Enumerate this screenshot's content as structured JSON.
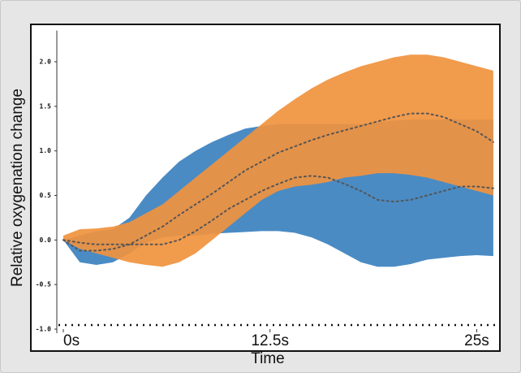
{
  "chart_data": {
    "type": "band",
    "x_label": "Time",
    "y_label": "Relative oxygenation change",
    "x": [
      0,
      1,
      2,
      3,
      4,
      5,
      6,
      7,
      8,
      9,
      10,
      11,
      12,
      13,
      14,
      15,
      16,
      17,
      18,
      19,
      20,
      21,
      22,
      23,
      24,
      25,
      26
    ],
    "xlim": [
      0,
      26.4
    ],
    "xticks": [
      {
        "value": 0,
        "label": "0s"
      },
      {
        "value": 12.5,
        "label": "12.5s"
      },
      {
        "value": 25,
        "label": "25s"
      }
    ],
    "ylim": [
      -1.0,
      2.35
    ],
    "yticks": [
      {
        "value": 2,
        "label": "2.0"
      },
      {
        "value": 1.5,
        "label": "1.5"
      },
      {
        "value": 1,
        "label": "1.0"
      },
      0.5,
      {
        "value": 0,
        "label": "0.0"
      },
      -0.5,
      {
        "value": -1,
        "label": "-1.0"
      }
    ],
    "series": [
      {
        "color": "#4a8bc4",
        "lower": [
          0,
          -0.25,
          -0.28,
          -0.25,
          -0.15,
          -0.03,
          0.03,
          0.05,
          0.05,
          0.07,
          0.08,
          0.09,
          0.1,
          0.1,
          0.08,
          0.03,
          -0.05,
          -0.15,
          -0.25,
          -0.3,
          -0.3,
          -0.27,
          -0.22,
          -0.2,
          -0.18,
          -0.17,
          -0.18
        ],
        "upper": [
          0,
          0.05,
          0.1,
          0.12,
          0.25,
          0.5,
          0.7,
          0.88,
          1.0,
          1.1,
          1.18,
          1.25,
          1.28,
          1.3,
          1.3,
          1.3,
          1.3,
          1.3,
          1.3,
          1.32,
          1.34,
          1.35,
          1.35,
          1.35,
          1.35,
          1.35,
          1.35
        ],
        "mean": [
          0,
          -0.03,
          -0.05,
          -0.05,
          -0.05,
          -0.05,
          -0.05,
          0.0,
          0.1,
          0.22,
          0.35,
          0.45,
          0.55,
          0.63,
          0.7,
          0.72,
          0.7,
          0.63,
          0.55,
          0.45,
          0.43,
          0.45,
          0.5,
          0.55,
          0.6,
          0.6,
          0.58
        ]
      },
      {
        "color": "#f0923e",
        "lower": [
          0,
          -0.1,
          -0.15,
          -0.2,
          -0.25,
          -0.28,
          -0.3,
          -0.25,
          -0.15,
          0,
          0.15,
          0.3,
          0.45,
          0.55,
          0.6,
          0.62,
          0.65,
          0.7,
          0.72,
          0.75,
          0.75,
          0.73,
          0.7,
          0.65,
          0.6,
          0.55,
          0.5
        ],
        "upper": [
          0.05,
          0.12,
          0.13,
          0.15,
          0.2,
          0.3,
          0.4,
          0.55,
          0.7,
          0.85,
          1.0,
          1.15,
          1.3,
          1.45,
          1.58,
          1.7,
          1.8,
          1.88,
          1.95,
          2.0,
          2.05,
          2.08,
          2.08,
          2.05,
          2.0,
          1.95,
          1.9
        ],
        "mean": [
          0,
          -0.12,
          -0.12,
          -0.1,
          -0.05,
          0.05,
          0.15,
          0.28,
          0.4,
          0.52,
          0.65,
          0.78,
          0.88,
          0.98,
          1.05,
          1.12,
          1.18,
          1.23,
          1.28,
          1.33,
          1.38,
          1.42,
          1.42,
          1.38,
          1.3,
          1.22,
          1.1
        ]
      }
    ]
  }
}
